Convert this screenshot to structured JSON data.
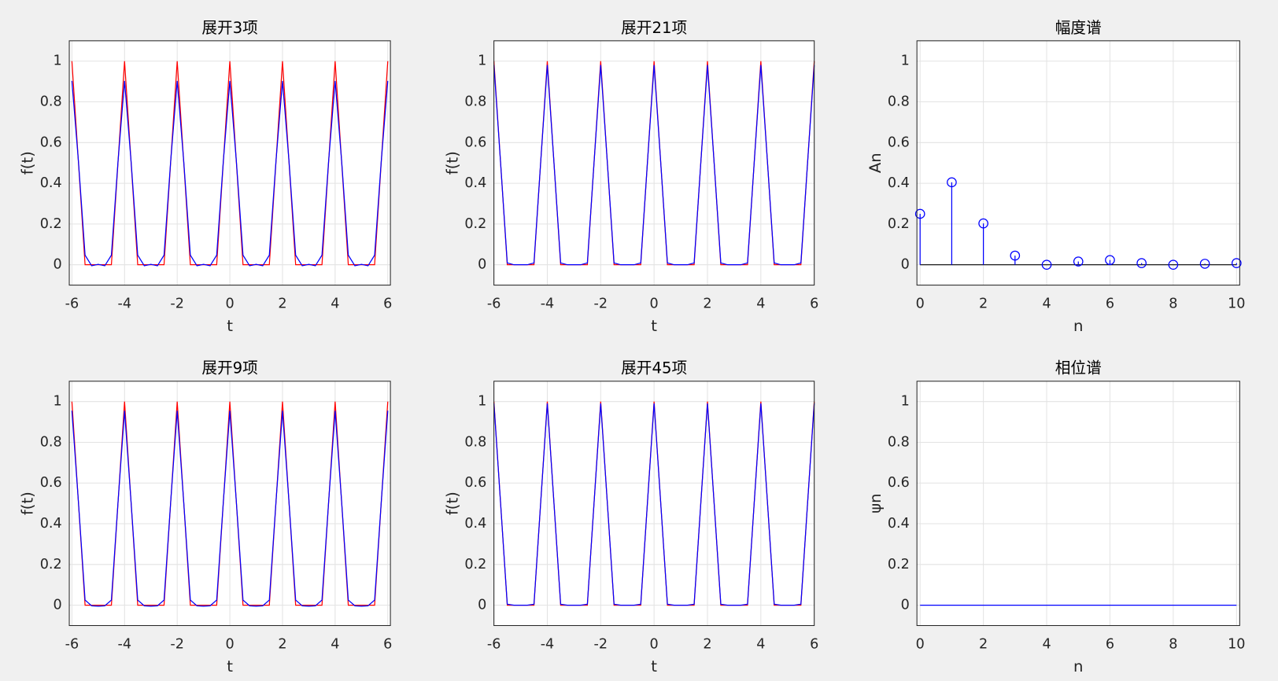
{
  "chart_data": [
    {
      "type": "line",
      "title": "展开3项",
      "xlabel": "t",
      "ylabel": "f(t)",
      "grid": true,
      "xlim": [
        -6.1,
        6.1
      ],
      "ylim": [
        -0.1,
        1.1
      ],
      "xticks": [
        -6,
        -4,
        -2,
        0,
        2,
        4,
        6
      ],
      "yticks": [
        0,
        0.2,
        0.4,
        0.6,
        0.8,
        1
      ],
      "x": [
        -6,
        -5.75,
        -5.5,
        -5.25,
        -5,
        -4.75,
        -4.5,
        -4.25,
        -4,
        -3.75,
        -3.5,
        -3.25,
        -3,
        -2.75,
        -2.5,
        -2.25,
        -2,
        -1.75,
        -1.5,
        -1.25,
        -1,
        -0.75,
        -0.5,
        -0.25,
        0,
        0.25,
        0.5,
        0.75,
        1,
        1.25,
        1.5,
        1.75,
        2,
        2.25,
        2.5,
        2.75,
        3,
        3.25,
        3.5,
        3.75,
        4,
        4.25,
        4.5,
        4.75,
        5,
        5.25,
        5.5,
        5.75,
        6
      ],
      "series": [
        {
          "color": "#ff0000",
          "values": [
            1,
            0.5,
            0,
            0,
            0,
            0,
            0,
            0.5,
            1,
            0.5,
            0,
            0,
            0,
            0,
            0,
            0.5,
            1,
            0.5,
            0,
            0,
            0,
            0,
            0,
            0.5,
            1,
            0.5,
            0,
            0,
            0,
            0,
            0,
            0.5,
            1,
            0.5,
            0,
            0,
            0,
            0,
            0,
            0.5,
            1,
            0.5,
            0,
            0,
            0,
            0,
            0,
            0.5,
            1
          ]
        },
        {
          "color": "#0000ff",
          "values": [
            0.903,
            0.505,
            0.047,
            -0.005,
            0.002,
            -0.005,
            0.047,
            0.505,
            0.903,
            0.505,
            0.047,
            -0.005,
            0.002,
            -0.005,
            0.047,
            0.505,
            0.903,
            0.505,
            0.047,
            -0.005,
            0.002,
            -0.005,
            0.047,
            0.505,
            0.903,
            0.505,
            0.047,
            -0.005,
            0.002,
            -0.005,
            0.047,
            0.505,
            0.903,
            0.505,
            0.047,
            -0.005,
            0.002,
            -0.005,
            0.047,
            0.505,
            0.903,
            0.505,
            0.047,
            -0.005,
            0.002,
            -0.005,
            0.047,
            0.505,
            0.903
          ]
        }
      ]
    },
    {
      "type": "line",
      "title": "展开21项",
      "xlabel": "t",
      "ylabel": "f(t)",
      "grid": true,
      "xlim": [
        -6,
        6
      ],
      "ylim": [
        -0.1,
        1.1
      ],
      "xticks": [
        -6,
        -4,
        -2,
        0,
        2,
        4,
        6
      ],
      "yticks": [
        0,
        0.2,
        0.4,
        0.6,
        0.8,
        1
      ],
      "x": [
        -6,
        -5.75,
        -5.5,
        -5.25,
        -5,
        -4.75,
        -4.5,
        -4.25,
        -4,
        -3.75,
        -3.5,
        -3.25,
        -3,
        -2.75,
        -2.5,
        -2.25,
        -2,
        -1.75,
        -1.5,
        -1.25,
        -1,
        -0.75,
        -0.5,
        -0.25,
        0,
        0.25,
        0.5,
        0.75,
        1,
        1.25,
        1.5,
        1.75,
        2,
        2.25,
        2.5,
        2.75,
        3,
        3.25,
        3.5,
        3.75,
        4,
        4.25,
        4.5,
        4.75,
        5,
        5.25,
        5.5,
        5.75,
        6
      ],
      "series": [
        {
          "color": "#ff0000",
          "values": [
            1,
            0.5,
            0,
            0,
            0,
            0,
            0,
            0.5,
            1,
            0.5,
            0,
            0,
            0,
            0,
            0,
            0.5,
            1,
            0.5,
            0,
            0,
            0,
            0,
            0,
            0.5,
            1,
            0.5,
            0,
            0,
            0,
            0,
            0,
            0.5,
            1,
            0.5,
            0,
            0,
            0,
            0,
            0,
            0.5,
            1,
            0.5,
            0,
            0,
            0,
            0,
            0,
            0.5,
            1
          ]
        },
        {
          "color": "#0000ff",
          "values": [
            0.981,
            0.5,
            0.009,
            0,
            0,
            0,
            0.009,
            0.5,
            0.981,
            0.5,
            0.009,
            0,
            0,
            0,
            0.009,
            0.5,
            0.981,
            0.5,
            0.009,
            0,
            0,
            0,
            0.009,
            0.5,
            0.981,
            0.5,
            0.009,
            0,
            0,
            0,
            0.009,
            0.5,
            0.981,
            0.5,
            0.009,
            0,
            0,
            0,
            0.009,
            0.5,
            0.981,
            0.5,
            0.009,
            0,
            0,
            0,
            0.009,
            0.5,
            0.981
          ]
        }
      ]
    },
    {
      "type": "stem",
      "title": "幅度谱",
      "xlabel": "n",
      "ylabel": "An",
      "grid": true,
      "xlim": [
        -0.1,
        10.1
      ],
      "ylim": [
        -0.1,
        1.1
      ],
      "xticks": [
        0,
        2,
        4,
        6,
        8,
        10
      ],
      "yticks": [
        0,
        0.2,
        0.4,
        0.6,
        0.8,
        1
      ],
      "x": [
        0,
        1,
        2,
        3,
        4,
        5,
        6,
        7,
        8,
        9,
        10
      ],
      "baseline_color": "#000000",
      "series": [
        {
          "color": "#0000ff",
          "values": [
            0.25,
            0.405,
            0.203,
            0.045,
            0,
            0.016,
            0.023,
            0.008,
            0,
            0.005,
            0.008
          ]
        }
      ]
    },
    {
      "type": "line",
      "title": "展开9项",
      "xlabel": "t",
      "ylabel": "f(t)",
      "grid": true,
      "xlim": [
        -6.1,
        6.1
      ],
      "ylim": [
        -0.1,
        1.1
      ],
      "xticks": [
        -6,
        -4,
        -2,
        0,
        2,
        4,
        6
      ],
      "yticks": [
        0,
        0.2,
        0.4,
        0.6,
        0.8,
        1
      ],
      "x": [
        -6,
        -5.75,
        -5.5,
        -5.25,
        -5,
        -4.75,
        -4.5,
        -4.25,
        -4,
        -3.75,
        -3.5,
        -3.25,
        -3,
        -2.75,
        -2.5,
        -2.25,
        -2,
        -1.75,
        -1.5,
        -1.25,
        -1,
        -0.75,
        -0.5,
        -0.25,
        0,
        0.25,
        0.5,
        0.75,
        1,
        1.25,
        1.5,
        1.75,
        2,
        2.25,
        2.5,
        2.75,
        3,
        3.25,
        3.5,
        3.75,
        4,
        4.25,
        4.5,
        4.75,
        5,
        5.25,
        5.5,
        5.75,
        6
      ],
      "series": [
        {
          "color": "#ff0000",
          "values": [
            1,
            0.5,
            0,
            0,
            0,
            0,
            0,
            0.5,
            1,
            0.5,
            0,
            0,
            0,
            0,
            0,
            0.5,
            1,
            0.5,
            0,
            0,
            0,
            0,
            0,
            0.5,
            1,
            0.5,
            0,
            0,
            0,
            0,
            0,
            0.5,
            1,
            0.5,
            0,
            0,
            0,
            0,
            0,
            0.5,
            1,
            0.5,
            0,
            0,
            0,
            0,
            0,
            0.5,
            1
          ]
        },
        {
          "color": "#0000ff",
          "values": [
            0.955,
            0.503,
            0.025,
            -0.003,
            -0.005,
            -0.003,
            0.025,
            0.503,
            0.955,
            0.503,
            0.025,
            -0.003,
            -0.005,
            -0.003,
            0.025,
            0.503,
            0.955,
            0.503,
            0.025,
            -0.003,
            -0.005,
            -0.003,
            0.025,
            0.503,
            0.955,
            0.503,
            0.025,
            -0.003,
            -0.005,
            -0.003,
            0.025,
            0.503,
            0.955,
            0.503,
            0.025,
            -0.003,
            -0.005,
            -0.003,
            0.025,
            0.503,
            0.955,
            0.503,
            0.025,
            -0.003,
            -0.005,
            -0.003,
            0.025,
            0.503,
            0.955
          ]
        }
      ]
    },
    {
      "type": "line",
      "title": "展开45项",
      "xlabel": "t",
      "ylabel": "f(t)",
      "grid": true,
      "xlim": [
        -6,
        6
      ],
      "ylim": [
        -0.1,
        1.1
      ],
      "xticks": [
        -6,
        -4,
        -2,
        0,
        2,
        4,
        6
      ],
      "yticks": [
        0,
        0.2,
        0.4,
        0.6,
        0.8,
        1
      ],
      "x": [
        -6,
        -5.75,
        -5.5,
        -5.25,
        -5,
        -4.75,
        -4.5,
        -4.25,
        -4,
        -3.75,
        -3.5,
        -3.25,
        -3,
        -2.75,
        -2.5,
        -2.25,
        -2,
        -1.75,
        -1.5,
        -1.25,
        -1,
        -0.75,
        -0.5,
        -0.25,
        0,
        0.25,
        0.5,
        0.75,
        1,
        1.25,
        1.5,
        1.75,
        2,
        2.25,
        2.5,
        2.75,
        3,
        3.25,
        3.5,
        3.75,
        4,
        4.25,
        4.5,
        4.75,
        5,
        5.25,
        5.5,
        5.75,
        6
      ],
      "series": [
        {
          "color": "#ff0000",
          "values": [
            1,
            0.5,
            0,
            0,
            0,
            0,
            0,
            0.5,
            1,
            0.5,
            0,
            0,
            0,
            0,
            0,
            0.5,
            1,
            0.5,
            0,
            0,
            0,
            0,
            0,
            0.5,
            1,
            0.5,
            0,
            0,
            0,
            0,
            0,
            0.5,
            1,
            0.5,
            0,
            0,
            0,
            0,
            0,
            0.5,
            1,
            0.5,
            0,
            0,
            0,
            0,
            0,
            0.5,
            1
          ]
        },
        {
          "color": "#0000ff",
          "values": [
            0.991,
            0.5,
            0.005,
            0,
            0,
            0,
            0.005,
            0.5,
            0.991,
            0.5,
            0.005,
            0,
            0,
            0,
            0.005,
            0.5,
            0.991,
            0.5,
            0.005,
            0,
            0,
            0,
            0.005,
            0.5,
            0.991,
            0.5,
            0.005,
            0,
            0,
            0,
            0.005,
            0.5,
            0.991,
            0.5,
            0.005,
            0,
            0,
            0,
            0.005,
            0.5,
            0.991,
            0.5,
            0.005,
            0,
            0,
            0,
            0.005,
            0.5,
            0.991
          ]
        }
      ]
    },
    {
      "type": "line",
      "title": "相位谱",
      "xlabel": "n",
      "ylabel": "ψn",
      "grid": true,
      "xlim": [
        -0.1,
        10.1
      ],
      "ylim": [
        -0.1,
        1.1
      ],
      "xticks": [
        0,
        2,
        4,
        6,
        8,
        10
      ],
      "yticks": [
        0,
        0.2,
        0.4,
        0.6,
        0.8,
        1
      ],
      "x": [
        0,
        1,
        2,
        3,
        4,
        5,
        6,
        7,
        8,
        9,
        10
      ],
      "series": [
        {
          "color": "#0000ff",
          "values": [
            0,
            0,
            0,
            0,
            0,
            0,
            0,
            0,
            0,
            0,
            0
          ]
        }
      ]
    }
  ]
}
